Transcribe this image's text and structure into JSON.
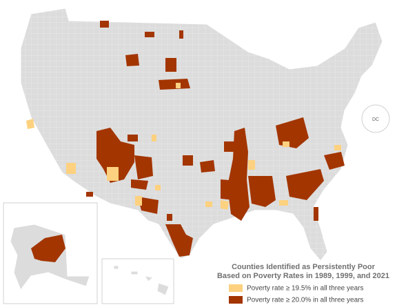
{
  "map": {
    "title": [
      "Counties Identified as Persistently Poor",
      "Based on Poverty Rates in 1989, 1999, and 2021"
    ],
    "legend": [
      {
        "label": "Poverty rate ≥ 19.5% in all three years",
        "color": "#fdd17f"
      },
      {
        "label": "Poverty rate ≥ 20.0% in all three years",
        "color": "#a33500"
      }
    ],
    "dc_label": "DC"
  }
}
